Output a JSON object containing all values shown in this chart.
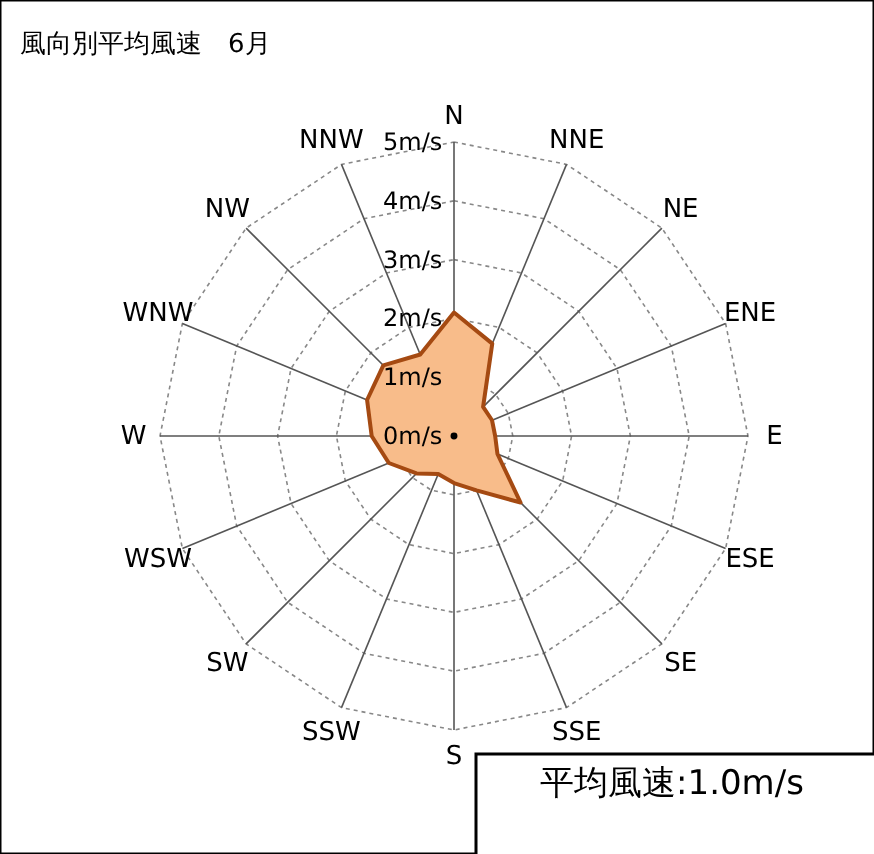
{
  "chart_data": {
    "type": "radar",
    "title": "風向別平均風速　6月",
    "categories": [
      "N",
      "NNE",
      "NE",
      "ENE",
      "E",
      "ESE",
      "SE",
      "SSE",
      "S",
      "SSW",
      "SW",
      "WSW",
      "W",
      "WNW",
      "NW",
      "NNW"
    ],
    "series": [
      {
        "color": "#f8bc8a",
        "values": [
          2.1,
          1.7,
          0.7,
          0.7,
          0.7,
          0.8,
          1.6,
          1.0,
          0.8,
          0.7,
          0.9,
          1.2,
          1.4,
          1.6,
          1.7,
          1.5
        ]
      }
    ],
    "ylim": [
      0,
      5
    ],
    "yticks": [
      {
        "value": 0,
        "label": "0m/s"
      },
      {
        "value": 1,
        "label": "1m/s"
      },
      {
        "value": 2,
        "label": "2m/s"
      },
      {
        "value": 3,
        "label": "3m/s"
      },
      {
        "value": 4,
        "label": "4m/s"
      },
      {
        "value": 5,
        "label": "5m/s"
      }
    ],
    "grid": true,
    "marker": "none",
    "line_style": "solid",
    "annotations": [
      "平均風速:1.0m/s"
    ]
  }
}
